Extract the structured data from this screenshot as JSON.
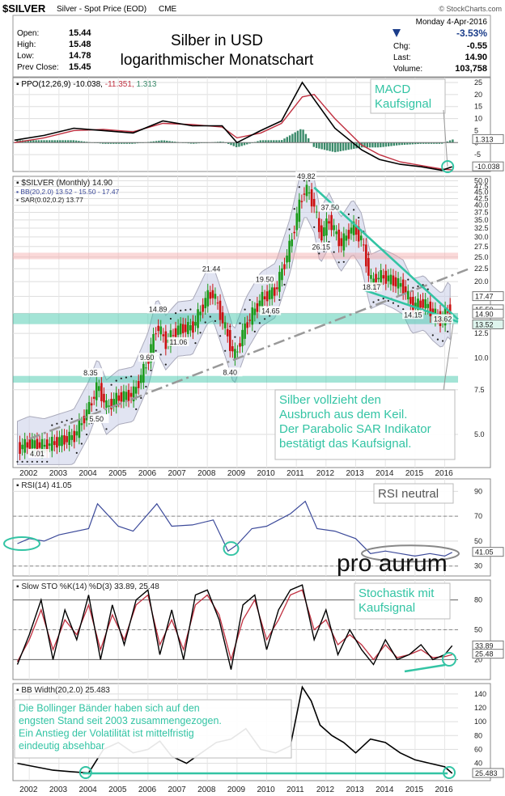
{
  "header": {
    "symbol": "$SILVER",
    "name": "Silver - Spot Price (EOD)",
    "exchange": "CME",
    "source": "© StockCharts.com",
    "date": "Monday 4-Apr-2016",
    "change_pct": "-3.53%",
    "open_label": "Open:",
    "open": "15.44",
    "high_label": "High:",
    "high": "15.48",
    "low_label": "Low:",
    "low": "14.78",
    "prevclose_label": "Prev Close:",
    "prevclose": "15.45",
    "chg_label": "Chg:",
    "chg": "-0.55",
    "last_label": "Last:",
    "last": "14.90",
    "volume_label": "Volume:",
    "volume": "103,758",
    "title_line1": "Silber in USD",
    "title_line2": "logarithmischer Monatschart"
  },
  "colors": {
    "up": "#1a9a1a",
    "down": "#cc1111",
    "teal": "#33c4a4",
    "pink": "#f4a8a8"
  },
  "chart_data": [
    {
      "type": "line",
      "panel": "PPO",
      "legend": {
        "name": "PPO(12,26,9)",
        "v1": "-10.038",
        "v2": "-11.351",
        "v3": "1.313"
      },
      "ylim": [
        -12,
        27
      ],
      "y_ticks": [
        "25",
        "20",
        "15",
        "10",
        "5",
        "0",
        "-5"
      ],
      "right_labels": [
        "1.313",
        "-10.038"
      ],
      "annotation": {
        "line1": "MACD",
        "line2": "Kaufsignal"
      },
      "x": [
        2001.5,
        2002.5,
        2003.5,
        2004.5,
        2005.5,
        2006.5,
        2007.5,
        2008.5,
        2009,
        2009.8,
        2010.5,
        2011.2,
        2011.6,
        2012.3,
        2013.2,
        2013.8,
        2014.5,
        2015.2,
        2015.9,
        2016.25
      ],
      "series": [
        {
          "name": "PPO",
          "values": [
            1,
            3,
            6,
            5,
            4,
            9,
            7,
            7,
            0,
            5,
            9,
            25,
            18,
            6,
            -3,
            -7,
            -9,
            -10,
            -11.5,
            -10
          ]
        },
        {
          "name": "Signal",
          "values": [
            0,
            2,
            5,
            5.5,
            4.5,
            8,
            7.5,
            6.5,
            2,
            4,
            8,
            19,
            20,
            10,
            -1,
            -5,
            -8,
            -9.5,
            -11,
            -11.3
          ]
        }
      ]
    },
    {
      "type": "line",
      "panel": "Price",
      "legend": {
        "symbol": "$SILVER (Monthly) 14.90",
        "bb": "BB(20,2.0) 13.52 - 15.50 - 17.47",
        "sar": "SAR(0.02,0.2) 13.77"
      },
      "scale": "log",
      "ylim": [
        3.7,
        52
      ],
      "y_ticks": [
        "50.0",
        "47.5",
        "45.0",
        "42.5",
        "40.0",
        "37.5",
        "35.0",
        "32.5",
        "30.0",
        "27.5",
        "25.0",
        "22.5",
        "20.0",
        "17.5",
        "15.0",
        "12.5",
        "10.0",
        "7.5",
        "5.0"
      ],
      "right_labels": [
        "17.47",
        "15.50",
        "14.90",
        "13.52"
      ],
      "data_labels": [
        {
          "x": 2002.3,
          "y": 4.01,
          "text": "4.01"
        },
        {
          "x": 2004.3,
          "y": 5.5,
          "text": "5.50"
        },
        {
          "x": 2004.1,
          "y": 8.35,
          "text": "8.35"
        },
        {
          "x": 2006.0,
          "y": 9.6,
          "text": "9.60"
        },
        {
          "x": 2006.3,
          "y": 14.89,
          "text": "14.89"
        },
        {
          "x": 2007.0,
          "y": 11.06,
          "text": "11.06"
        },
        {
          "x": 2008.1,
          "y": 21.44,
          "text": "21.44"
        },
        {
          "x": 2008.8,
          "y": 8.4,
          "text": "8.40"
        },
        {
          "x": 2009.9,
          "y": 19.5,
          "text": "19.50"
        },
        {
          "x": 2010.1,
          "y": 14.65,
          "text": "14.65"
        },
        {
          "x": 2011.3,
          "y": 49.82,
          "text": "49.82"
        },
        {
          "x": 2012.1,
          "y": 37.5,
          "text": "37.50"
        },
        {
          "x": 2011.8,
          "y": 26.15,
          "text": "26.15"
        },
        {
          "x": 2013.5,
          "y": 18.17,
          "text": "18.17"
        },
        {
          "x": 2014.9,
          "y": 14.15,
          "text": "14.15"
        },
        {
          "x": 2015.9,
          "y": 13.62,
          "text": "13.62"
        }
      ],
      "annotation": {
        "line1": "Silber vollzieht den",
        "line2": "Ausbruch aus dem Keil.",
        "line3": "Der Parabolic SAR Indikator",
        "line4": "bestätigt das Kaufsignal."
      },
      "x": [
        2001.6,
        2002.0,
        2002.5,
        2003.0,
        2003.5,
        2004.0,
        2004.3,
        2004.6,
        2005.0,
        2005.5,
        2006.0,
        2006.3,
        2006.6,
        2007.0,
        2007.5,
        2008.0,
        2008.2,
        2008.7,
        2008.9,
        2009.3,
        2009.8,
        2010.3,
        2010.8,
        2011.1,
        2011.3,
        2011.6,
        2011.8,
        2012.1,
        2012.5,
        2012.9,
        2013.2,
        2013.5,
        2013.9,
        2014.3,
        2014.6,
        2014.9,
        2015.3,
        2015.6,
        2015.9,
        2016.1,
        2016.25
      ],
      "series": [
        {
          "name": "$SILVER",
          "values": [
            4.4,
            4.6,
            4.5,
            4.7,
            4.9,
            6.3,
            7.8,
            6.4,
            7.0,
            7.2,
            9.8,
            13.5,
            11.5,
            13.0,
            13.2,
            17.5,
            18.0,
            12.0,
            10.0,
            13.5,
            17.0,
            18.5,
            28.0,
            40.0,
            47.0,
            40.0,
            30.0,
            35.0,
            28.0,
            33.0,
            29.0,
            20.0,
            21.0,
            20.0,
            19.0,
            16.0,
            16.5,
            15.0,
            14.0,
            15.5,
            14.9
          ]
        }
      ]
    },
    {
      "type": "line",
      "panel": "RSI",
      "legend": {
        "name": "RSI(14)",
        "value": "41.05"
      },
      "ylim": [
        22,
        100
      ],
      "y_ticks": [
        "90",
        "70",
        "50",
        "30"
      ],
      "right_labels": [
        "41.05"
      ],
      "annotation": {
        "line1": "RSI neutral"
      },
      "watermark": "pro aurum",
      "x": [
        2001.6,
        2002.0,
        2002.5,
        2003.0,
        2004.0,
        2004.3,
        2005.0,
        2005.5,
        2006.3,
        2006.8,
        2007.5,
        2008.2,
        2008.7,
        2009.0,
        2009.5,
        2010.0,
        2010.8,
        2011.3,
        2011.7,
        2012.3,
        2013.0,
        2013.5,
        2014.0,
        2014.5,
        2015.0,
        2015.5,
        2016.0,
        2016.25
      ],
      "series": [
        {
          "name": "RSI",
          "values": [
            48,
            52,
            50,
            55,
            60,
            80,
            62,
            58,
            80,
            62,
            63,
            67,
            42,
            47,
            60,
            62,
            72,
            82,
            60,
            58,
            52,
            40,
            42,
            40,
            38,
            40,
            38,
            41
          ]
        }
      ]
    },
    {
      "type": "line",
      "panel": "Slow STO",
      "legend": {
        "name": "Slow STO %K(14) %D(3)",
        "k": "33.89",
        "d": "25.48"
      },
      "ylim": [
        0,
        100
      ],
      "y_ticks": [
        "80",
        "50",
        "20"
      ],
      "right_labels": [
        "33.89",
        "25.48"
      ],
      "annotation": {
        "line1": "Stochastik mit",
        "line2": "Kaufsignal"
      },
      "x": [
        2001.6,
        2002.0,
        2002.4,
        2002.8,
        2003.2,
        2003.6,
        2004.0,
        2004.4,
        2004.8,
        2005.2,
        2005.6,
        2006.0,
        2006.4,
        2006.8,
        2007.2,
        2007.6,
        2008.0,
        2008.4,
        2008.8,
        2009.2,
        2009.6,
        2010.0,
        2010.4,
        2010.8,
        2011.2,
        2011.6,
        2012.0,
        2012.4,
        2012.8,
        2013.2,
        2013.6,
        2014.0,
        2014.4,
        2014.8,
        2015.2,
        2015.6,
        2016.0,
        2016.25
      ],
      "series": [
        {
          "name": "%K",
          "values": [
            15,
            45,
            80,
            20,
            70,
            40,
            85,
            20,
            75,
            35,
            80,
            90,
            25,
            70,
            20,
            85,
            90,
            60,
            10,
            75,
            85,
            30,
            70,
            90,
            95,
            40,
            70,
            25,
            50,
            30,
            15,
            40,
            20,
            25,
            35,
            20,
            25,
            34
          ]
        },
        {
          "name": "%D",
          "values": [
            18,
            40,
            70,
            30,
            60,
            45,
            75,
            30,
            65,
            40,
            75,
            85,
            35,
            60,
            30,
            75,
            85,
            65,
            20,
            60,
            80,
            40,
            60,
            85,
            90,
            50,
            60,
            35,
            45,
            35,
            20,
            35,
            22,
            25,
            30,
            22,
            23,
            25
          ]
        }
      ]
    },
    {
      "type": "line",
      "panel": "BB Width",
      "legend": {
        "name": "BB Width(20,2.0)",
        "value": "25.483"
      },
      "ylim": [
        15,
        155
      ],
      "y_ticks": [
        "140",
        "120",
        "100",
        "80",
        "60",
        "40"
      ],
      "right_labels": [
        "25.483"
      ],
      "x_ticks": [
        "2002",
        "2003",
        "2004",
        "2005",
        "2006",
        "2007",
        "2008",
        "2009",
        "2010",
        "2011",
        "2012",
        "2013",
        "2014",
        "2015",
        "2016"
      ],
      "annotation": {
        "line1": "Die Bollinger Bänder haben sich auf den",
        "line2": "engsten Stand seit 2003 zusammengezogen.",
        "line3": "Ein Anstieg der Volatilität ist mittelfristig",
        "line4": "eindeutig absehbar"
      },
      "x": [
        2001.6,
        2002.2,
        2002.8,
        2003.4,
        2004.0,
        2004.5,
        2005.0,
        2005.5,
        2006.0,
        2006.4,
        2006.8,
        2007.3,
        2007.8,
        2008.3,
        2008.8,
        2009.3,
        2009.8,
        2010.3,
        2010.8,
        2011.2,
        2011.5,
        2011.8,
        2012.2,
        2012.6,
        2013.0,
        2013.5,
        2014.0,
        2014.5,
        2015.0,
        2015.5,
        2016.0,
        2016.25
      ],
      "series": [
        {
          "name": "BB Width",
          "values": [
            40,
            35,
            30,
            28,
            26,
            60,
            70,
            55,
            60,
            72,
            50,
            40,
            55,
            70,
            75,
            90,
            60,
            55,
            65,
            150,
            130,
            95,
            80,
            70,
            55,
            75,
            70,
            55,
            45,
            40,
            35,
            25.5
          ]
        }
      ]
    }
  ]
}
